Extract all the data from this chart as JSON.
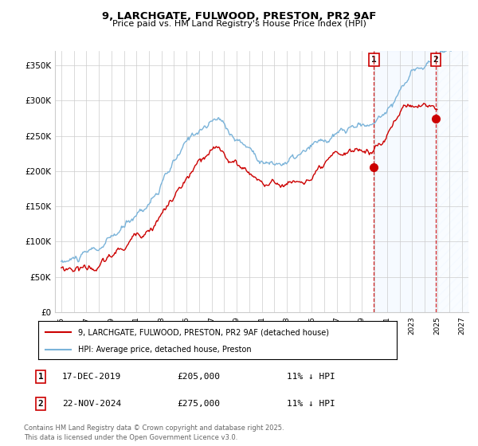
{
  "title": "9, LARCHGATE, FULWOOD, PRESTON, PR2 9AF",
  "subtitle": "Price paid vs. HM Land Registry's House Price Index (HPI)",
  "ylim": [
    0,
    370000
  ],
  "yticks": [
    0,
    50000,
    100000,
    150000,
    200000,
    250000,
    300000,
    350000
  ],
  "xlim_left": 1994.5,
  "xlim_right": 2027.5,
  "sale1": {
    "date": "17-DEC-2019",
    "price": 205000,
    "label": "1",
    "year": 2019.96
  },
  "sale2": {
    "date": "22-NOV-2024",
    "price": 275000,
    "label": "2",
    "year": 2024.89
  },
  "legend_property": "9, LARCHGATE, FULWOOD, PRESTON, PR2 9AF (detached house)",
  "legend_hpi": "HPI: Average price, detached house, Preston",
  "footnote1": "Contains HM Land Registry data © Crown copyright and database right 2025.",
  "footnote2": "This data is licensed under the Open Government Licence v3.0.",
  "color_property": "#cc0000",
  "color_hpi": "#7ab3d9",
  "color_vline": "#cc0000",
  "shade_color": "#ddeeff",
  "background_color": "#ffffff",
  "grid_color": "#cccccc",
  "hpi_seed": 10,
  "prop_seed": 20
}
